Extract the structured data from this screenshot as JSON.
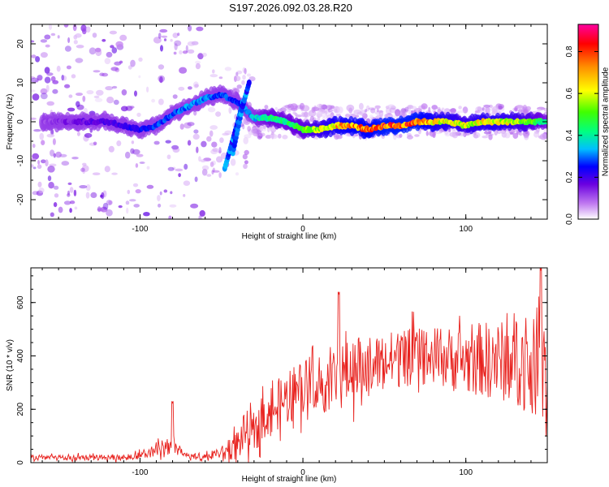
{
  "title": "S197.2026.092.03.28.R20",
  "colors": {
    "line": "#e8221e",
    "frame": "#000000",
    "background": "#ffffff"
  },
  "chart_data": [
    {
      "type": "heatmap",
      "name": "spectrogram",
      "xlabel": "Height of straight line (km)",
      "ylabel": "Frequency (Hz)",
      "xlim": [
        -167,
        150
      ],
      "ylim": [
        -25,
        25
      ],
      "x_ticks": [
        -100,
        0,
        100
      ],
      "y_ticks": [
        -20,
        -10,
        0,
        10,
        20
      ],
      "x_tick_labels": [
        "-100",
        "0",
        "100"
      ],
      "y_tick_labels": [
        "-20",
        "-10",
        "0",
        "10",
        "20"
      ],
      "colorbar": {
        "label": "Normalized spectral amplitude",
        "range": [
          0,
          0.93
        ],
        "ticks": [
          0.0,
          0.2,
          0.4,
          0.6,
          0.8
        ],
        "tick_labels": [
          "0.0",
          "0.2",
          "0.4",
          "0.6",
          "0.8"
        ],
        "colormap": [
          "#ffffff",
          "#c07af0",
          "#6a00e0",
          "#0000ff",
          "#00c0ff",
          "#00ff80",
          "#40ff00",
          "#ffff00",
          "#ff9000",
          "#ff0000",
          "#ff00a0"
        ]
      },
      "ridge": {
        "description_x": [
          -160,
          -140,
          -120,
          -100,
          -90,
          -80,
          -70,
          -60,
          -50,
          -40,
          -30,
          -20,
          -10,
          0,
          10,
          20,
          30,
          40,
          50,
          60,
          70,
          80,
          90,
          100,
          110,
          120,
          130,
          140,
          150
        ],
        "frequency": [
          0,
          0,
          0,
          -2,
          -1,
          2,
          4,
          6,
          7,
          5,
          1,
          1,
          0,
          -2,
          -2,
          -1,
          -1,
          -2,
          -1,
          -1,
          0,
          0,
          0,
          -1,
          0,
          0,
          0,
          0,
          0
        ],
        "amplitude": [
          0.15,
          0.2,
          0.25,
          0.3,
          0.35,
          0.35,
          0.4,
          0.4,
          0.35,
          0.35,
          0.45,
          0.55,
          0.55,
          0.6,
          0.7,
          0.8,
          0.85,
          0.85,
          0.9,
          0.9,
          0.9,
          0.8,
          0.75,
          0.7,
          0.75,
          0.75,
          0.7,
          0.65,
          0.5
        ]
      },
      "branches": [
        {
          "x": [
            -48,
            -44,
            -40,
            -37
          ],
          "frequency": [
            -12,
            -6,
            0,
            5
          ]
        },
        {
          "x": [
            -43,
            -40,
            -37,
            -33
          ],
          "frequency": [
            -8,
            -2,
            4,
            10
          ]
        }
      ]
    },
    {
      "type": "line",
      "name": "snr",
      "xlabel": "Height of straight line (km)",
      "ylabel": "SNR (10 * v/v)",
      "xlim": [
        -167,
        150
      ],
      "ylim": [
        0,
        730
      ],
      "x_ticks": [
        -100,
        0,
        100
      ],
      "y_ticks": [
        0,
        200,
        400,
        600
      ],
      "x_tick_labels": [
        "-100",
        "0",
        "100"
      ],
      "y_tick_labels": [
        "0",
        "200",
        "400",
        "600"
      ],
      "envelope": {
        "x": [
          -167,
          -150,
          -130,
          -110,
          -100,
          -90,
          -80,
          -75,
          -70,
          -60,
          -50,
          -40,
          -35,
          -30,
          -25,
          -20,
          -10,
          0,
          10,
          20,
          30,
          40,
          50,
          60,
          70,
          80,
          90,
          100,
          110,
          120,
          130,
          140,
          150
        ],
        "mean": [
          20,
          18,
          18,
          20,
          28,
          45,
          70,
          40,
          22,
          22,
          35,
          70,
          120,
          100,
          160,
          200,
          240,
          280,
          300,
          320,
          340,
          360,
          380,
          390,
          395,
          400,
          390,
          380,
          390,
          380,
          380,
          360,
          340
        ],
        "spread": [
          10,
          10,
          10,
          10,
          15,
          25,
          40,
          20,
          10,
          12,
          25,
          60,
          80,
          70,
          80,
          90,
          100,
          110,
          120,
          120,
          120,
          110,
          110,
          110,
          110,
          110,
          120,
          130,
          140,
          150,
          160,
          180,
          200
        ]
      },
      "peaks": [
        {
          "x": -80,
          "y": 230
        },
        {
          "x": 22,
          "y": 640
        },
        {
          "x": 146,
          "y": 730
        }
      ]
    }
  ]
}
